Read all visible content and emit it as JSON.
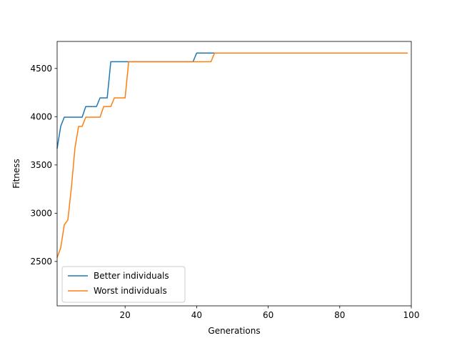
{
  "chart_data": {
    "type": "line",
    "title": "",
    "xlabel": "Generations",
    "ylabel": "Fitness",
    "xlim": [
      1,
      100
    ],
    "ylim": [
      2040,
      4780
    ],
    "xticks": [
      20,
      40,
      60,
      80,
      100
    ],
    "yticks": [
      2500,
      3000,
      3500,
      4000,
      4500
    ],
    "grid": false,
    "legend_position": "lower-left",
    "series": [
      {
        "name": "Better individuals",
        "color": "#1f77b4",
        "points": [
          [
            1,
            3670
          ],
          [
            2,
            3900
          ],
          [
            3,
            3995
          ],
          [
            8,
            3995
          ],
          [
            9,
            4105
          ],
          [
            12,
            4105
          ],
          [
            13,
            4195
          ],
          [
            15,
            4195
          ],
          [
            16,
            4570
          ],
          [
            39,
            4570
          ],
          [
            40,
            4660
          ],
          [
            99,
            4660
          ]
        ]
      },
      {
        "name": "Worst individuals",
        "color": "#ff7f0e",
        "points": [
          [
            1,
            2540
          ],
          [
            2,
            2640
          ],
          [
            3,
            2880
          ],
          [
            4,
            2930
          ],
          [
            5,
            3270
          ],
          [
            6,
            3680
          ],
          [
            7,
            3900
          ],
          [
            8,
            3900
          ],
          [
            9,
            3995
          ],
          [
            13,
            3995
          ],
          [
            14,
            4105
          ],
          [
            16,
            4105
          ],
          [
            17,
            4195
          ],
          [
            20,
            4195
          ],
          [
            21,
            4570
          ],
          [
            44,
            4570
          ],
          [
            45,
            4660
          ],
          [
            99,
            4660
          ]
        ]
      }
    ]
  }
}
